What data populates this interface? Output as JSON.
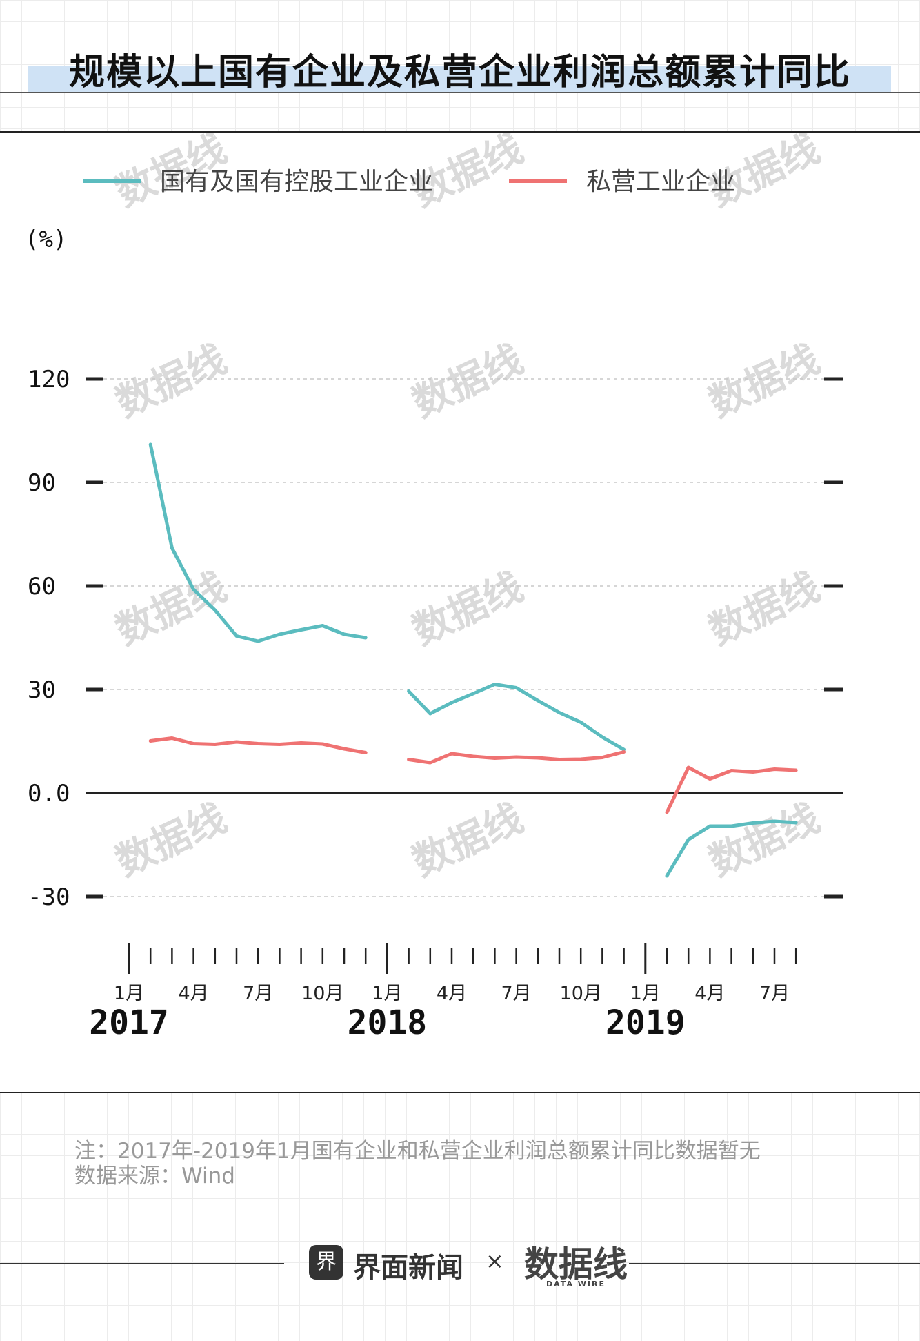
{
  "title": "规模以上国有企业及私营企业利润总额累计同比",
  "watermark": "数据线",
  "chart_data": {
    "type": "line",
    "title": "规模以上国有企业及私营企业利润总额累计同比",
    "ylabel": "(%)",
    "ylim": [
      -30,
      120
    ],
    "yticks": [
      -30,
      0,
      30,
      60,
      90,
      120
    ],
    "ytick_labels": [
      "-30",
      "0.0",
      "30",
      "60",
      "90",
      "120"
    ],
    "x_months": [
      "2017-01",
      "2017-02",
      "2017-03",
      "2017-04",
      "2017-05",
      "2017-06",
      "2017-07",
      "2017-08",
      "2017-09",
      "2017-10",
      "2017-11",
      "2017-12",
      "2018-01",
      "2018-02",
      "2018-03",
      "2018-04",
      "2018-05",
      "2018-06",
      "2018-07",
      "2018-08",
      "2018-09",
      "2018-10",
      "2018-11",
      "2018-12",
      "2019-01",
      "2019-02",
      "2019-03",
      "2019-04",
      "2019-05",
      "2019-06",
      "2019-07",
      "2019-08"
    ],
    "month_labels": [
      {
        "index": 0,
        "label": "1月"
      },
      {
        "index": 3,
        "label": "4月"
      },
      {
        "index": 6,
        "label": "7月"
      },
      {
        "index": 9,
        "label": "10月"
      },
      {
        "index": 12,
        "label": "1月"
      },
      {
        "index": 15,
        "label": "4月"
      },
      {
        "index": 18,
        "label": "7月"
      },
      {
        "index": 21,
        "label": "10月"
      },
      {
        "index": 24,
        "label": "1月"
      },
      {
        "index": 27,
        "label": "4月"
      },
      {
        "index": 30,
        "label": "7月"
      }
    ],
    "year_labels": [
      {
        "index": 0,
        "label": "2017"
      },
      {
        "index": 12,
        "label": "2018"
      },
      {
        "index": 24,
        "label": "2019"
      }
    ],
    "series": [
      {
        "name": "国有及国有控股工业企业",
        "color": "#5bbcbf",
        "values": [
          null,
          101,
          71,
          59,
          53,
          45.5,
          44,
          46,
          47.3,
          48.5,
          46,
          45,
          null,
          29.5,
          23,
          26.2,
          28.8,
          31.5,
          30.5,
          26.8,
          23.3,
          20.5,
          16.2,
          12.6,
          null,
          -24,
          -13.5,
          -9.6,
          -9.6,
          -8.7,
          -8.2,
          -8.6
        ]
      },
      {
        "name": "私营工业企业",
        "color": "#ef7272",
        "values": [
          null,
          15.1,
          15.9,
          14.3,
          14.1,
          14.8,
          14.3,
          14.1,
          14.5,
          14.2,
          12.8,
          11.7,
          null,
          9.7,
          8.8,
          11.4,
          10.6,
          10.1,
          10.4,
          10.2,
          9.7,
          9.8,
          10.3,
          11.9,
          null,
          -5.6,
          7.4,
          4.1,
          6.5,
          6.1,
          6.9,
          6.6
        ]
      }
    ]
  },
  "note": "注：2017年-2019年1月国有企业和私营企业利润总额累计同比数据暂无",
  "source": "数据来源：Wind",
  "footer": {
    "brand": "界面新闻",
    "brand_icon": "界",
    "separator": "×",
    "partner": "数据线",
    "partner_sub": "DATA WIRE"
  }
}
